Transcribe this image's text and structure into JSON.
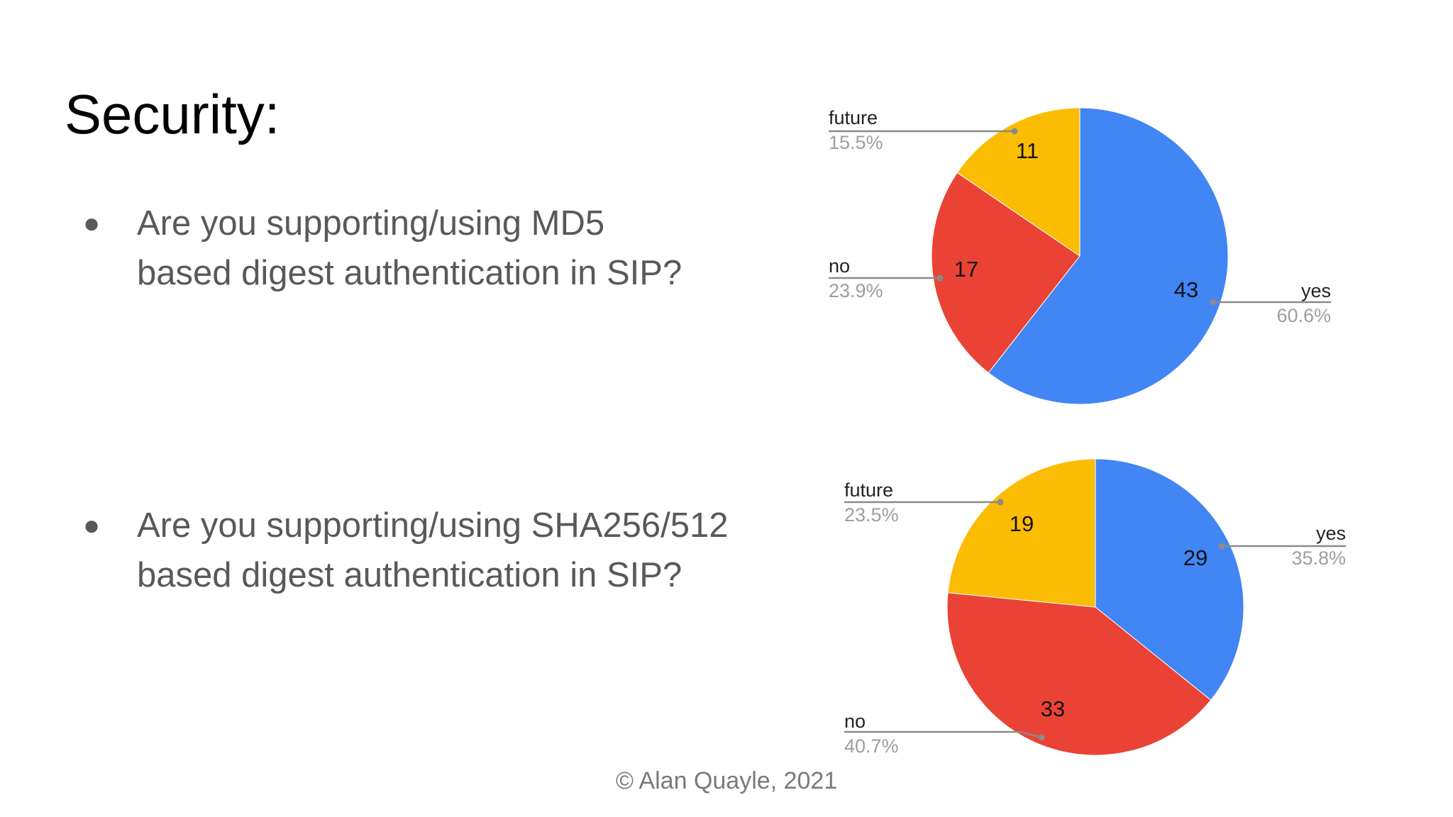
{
  "slide": {
    "title": "Security:",
    "bullets": [
      {
        "marker": "●",
        "text": "Are you supporting/using MD5\nbased digest authentication in SIP?"
      },
      {
        "marker": "●",
        "text": "Are you supporting/using SHA256/512\nbased digest authentication in SIP?"
      }
    ],
    "footer": "© Alan Quayle, 2021"
  },
  "colors": {
    "yes": "#4285f4",
    "no": "#ea4335",
    "future": "#fbbc04",
    "leader": "#8a8a8a"
  },
  "chart_data": [
    {
      "type": "pie",
      "title": "",
      "start": "12 o'clock, clockwise",
      "legend": "none",
      "slices": [
        {
          "label": "yes",
          "value": 43,
          "percent": "60.6%"
        },
        {
          "label": "no",
          "value": 17,
          "percent": "23.9%"
        },
        {
          "label": "future",
          "value": 11,
          "percent": "15.5%"
        }
      ]
    },
    {
      "type": "pie",
      "title": "",
      "start": "12 o'clock, clockwise",
      "legend": "none",
      "slices": [
        {
          "label": "yes",
          "value": 29,
          "percent": "35.8%"
        },
        {
          "label": "no",
          "value": 33,
          "percent": "40.7%"
        },
        {
          "label": "future",
          "value": 19,
          "percent": "23.5%"
        }
      ]
    }
  ]
}
